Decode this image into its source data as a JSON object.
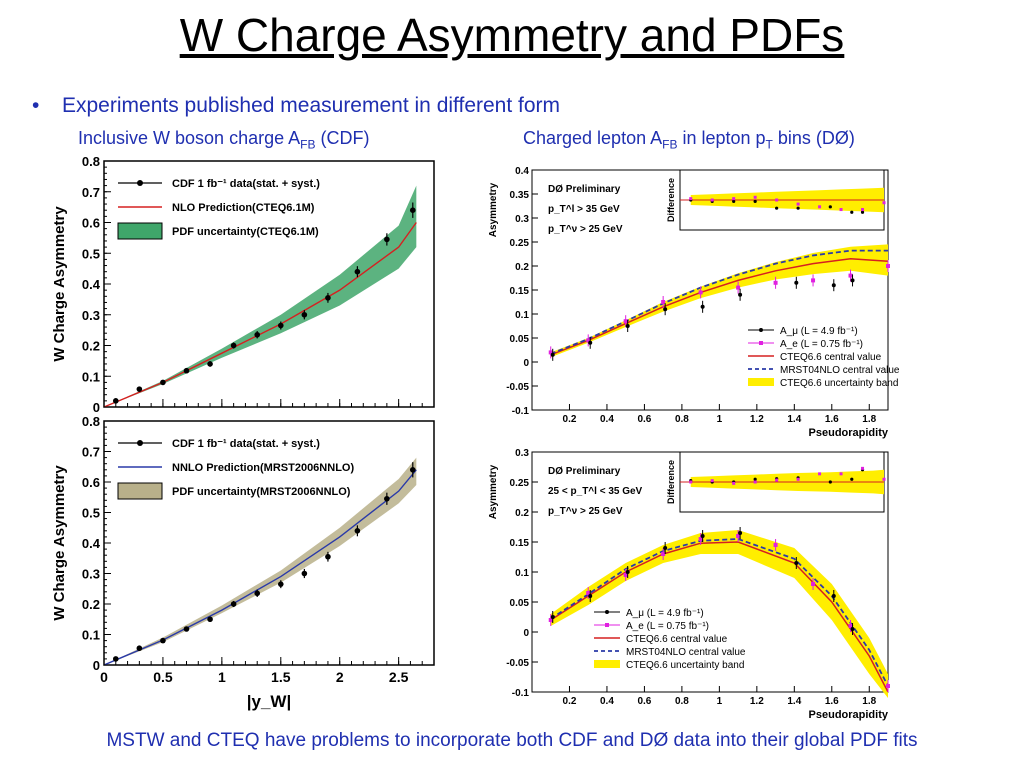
{
  "title": "W Charge Asymmetry and PDFs",
  "bullet": "Experiments published measurement in different form",
  "caption_left": {
    "pre": "Inclusive W boson charge A",
    "sub": "FB",
    "post": " (CDF)"
  },
  "caption_right": {
    "pre": "Charged lepton A",
    "sub": "FB",
    "mid": " in lepton p",
    "sub2": "T",
    "post": " bins (DØ)"
  },
  "footer": "MSTW and CTEQ have problems to incorporate both CDF and DØ data into their global PDF fits",
  "colors": {
    "text_blue": "#1f2fb0",
    "cdf_band_green": "#3fa66a",
    "cdf_band_olive": "#b8b08a",
    "d0_band_yellow": "#ffee00",
    "red_line": "#d62020",
    "blue_line": "#2a3aa8",
    "magenta": "#e020e0"
  },
  "chart_data": [
    {
      "id": "cdf-top",
      "type": "scatter",
      "xlabel": "",
      "ylabel": "W Charge Asymmetry",
      "xlim": [
        0,
        2.8
      ],
      "ylim": [
        0,
        0.8
      ],
      "xticks": [
        0,
        0.5,
        1,
        1.5,
        2,
        2.5
      ],
      "xtick_labels": [],
      "yticks": [
        0,
        0.1,
        0.2,
        0.3,
        0.4,
        0.5,
        0.6,
        0.7,
        0.8
      ],
      "legend": [
        {
          "label": "CDF 1 fb⁻¹ data(stat. + syst.)",
          "kind": "marker"
        },
        {
          "label": "NLO Prediction(CTEQ6.1M)",
          "kind": "line"
        },
        {
          "label": "PDF uncertainty(CTEQ6.1M)",
          "kind": "band"
        }
      ],
      "legend_position": "top-left",
      "data": {
        "x": [
          0.1,
          0.3,
          0.5,
          0.7,
          0.9,
          1.1,
          1.3,
          1.5,
          1.7,
          1.9,
          2.15,
          2.4,
          2.62
        ],
        "y": [
          0.02,
          0.058,
          0.08,
          0.118,
          0.14,
          0.2,
          0.235,
          0.265,
          0.3,
          0.355,
          0.44,
          0.545,
          0.64
        ],
        "err": [
          0.006,
          0.008,
          0.008,
          0.008,
          0.009,
          0.01,
          0.012,
          0.013,
          0.015,
          0.016,
          0.018,
          0.02,
          0.025
        ]
      },
      "prediction": {
        "x": [
          0,
          0.5,
          1,
          1.5,
          2,
          2.5,
          2.65
        ],
        "y": [
          0,
          0.08,
          0.175,
          0.27,
          0.38,
          0.52,
          0.6
        ]
      },
      "band": {
        "x": [
          0,
          0.5,
          1,
          1.5,
          2,
          2.5,
          2.65
        ],
        "lo": [
          0,
          0.075,
          0.16,
          0.24,
          0.33,
          0.45,
          0.52
        ],
        "hi": [
          0,
          0.085,
          0.19,
          0.3,
          0.43,
          0.59,
          0.72
        ]
      },
      "line_color": "#d62020",
      "band_color": "#3fa66a"
    },
    {
      "id": "cdf-bottom",
      "type": "scatter",
      "xlabel": "|y_W|",
      "ylabel": "W Charge Asymmetry",
      "xlim": [
        0,
        2.8
      ],
      "ylim": [
        0,
        0.8
      ],
      "xticks": [
        0,
        0.5,
        1,
        1.5,
        2,
        2.5
      ],
      "xtick_labels": [
        "0",
        "0.5",
        "1",
        "1.5",
        "2",
        "2.5"
      ],
      "yticks": [
        0,
        0.1,
        0.2,
        0.3,
        0.4,
        0.5,
        0.6,
        0.7,
        0.8
      ],
      "legend": [
        {
          "label": "CDF 1 fb⁻¹ data(stat. + syst.)",
          "kind": "marker"
        },
        {
          "label": "NNLO Prediction(MRST2006NNLO)",
          "kind": "line"
        },
        {
          "label": "PDF uncertainty(MRST2006NNLO)",
          "kind": "band"
        }
      ],
      "legend_position": "top-left",
      "data": {
        "x": [
          0.1,
          0.3,
          0.5,
          0.7,
          0.9,
          1.1,
          1.3,
          1.5,
          1.7,
          1.9,
          2.15,
          2.4,
          2.62
        ],
        "y": [
          0.02,
          0.055,
          0.08,
          0.118,
          0.15,
          0.2,
          0.235,
          0.265,
          0.3,
          0.355,
          0.44,
          0.545,
          0.64
        ],
        "err": [
          0.006,
          0.008,
          0.008,
          0.008,
          0.009,
          0.01,
          0.012,
          0.013,
          0.015,
          0.016,
          0.018,
          0.02,
          0.025
        ]
      },
      "prediction": {
        "x": [
          0,
          0.5,
          1,
          1.5,
          2,
          2.5,
          2.65
        ],
        "y": [
          0,
          0.082,
          0.18,
          0.29,
          0.42,
          0.57,
          0.64
        ]
      },
      "band": {
        "x": [
          0,
          0.5,
          1,
          1.5,
          2,
          2.5,
          2.65
        ],
        "lo": [
          0,
          0.075,
          0.17,
          0.27,
          0.39,
          0.53,
          0.59
        ],
        "hi": [
          0,
          0.09,
          0.195,
          0.31,
          0.45,
          0.61,
          0.68
        ]
      },
      "line_color": "#2a3aa8",
      "band_color": "#b8b08a"
    },
    {
      "id": "d0-top",
      "type": "line",
      "xlabel": "Pseudorapidity",
      "ylabel": "Asymmetry",
      "xlim": [
        0,
        1.9
      ],
      "ylim": [
        -0.1,
        0.4
      ],
      "xticks": [
        0.2,
        0.4,
        0.6,
        0.8,
        1,
        1.2,
        1.4,
        1.6,
        1.8
      ],
      "yticks": [
        -0.1,
        -0.05,
        0,
        0.05,
        0.1,
        0.15,
        0.2,
        0.25,
        0.3,
        0.35,
        0.4
      ],
      "annotation": [
        "DØ Preliminary",
        "p_T^l > 35 GeV",
        "p_T^ν > 25 GeV"
      ],
      "legend": [
        {
          "label": "A_μ (L = 4.9 fb⁻¹)",
          "kind": "marker"
        },
        {
          "label": "A_e (L = 0.75 fb⁻¹)",
          "kind": "marker-magenta"
        },
        {
          "label": "CTEQ6.6 central value",
          "kind": "line"
        },
        {
          "label": "MRST04NLO central value",
          "kind": "dashed"
        },
        {
          "label": "CTEQ6.6 uncertainty band",
          "kind": "band"
        }
      ],
      "legend_position": "bottom-right",
      "inset_ylabel": "Difference",
      "mu": {
        "x": [
          0.1,
          0.3,
          0.5,
          0.7,
          0.9,
          1.1,
          1.4,
          1.6,
          1.7
        ],
        "y": [
          0.015,
          0.04,
          0.075,
          0.11,
          0.115,
          0.14,
          0.165,
          0.16,
          0.17
        ]
      },
      "e": {
        "x": [
          0.1,
          0.3,
          0.5,
          0.7,
          0.9,
          1.1,
          1.3,
          1.5,
          1.7,
          1.9
        ],
        "y": [
          0.02,
          0.045,
          0.085,
          0.125,
          0.145,
          0.155,
          0.165,
          0.17,
          0.18,
          0.2
        ]
      },
      "cteq": {
        "x": [
          0.1,
          0.3,
          0.5,
          0.7,
          0.9,
          1.1,
          1.3,
          1.5,
          1.7,
          1.9
        ],
        "y": [
          0.015,
          0.045,
          0.08,
          0.115,
          0.145,
          0.17,
          0.19,
          0.205,
          0.215,
          0.21
        ]
      },
      "mrst": {
        "x": [
          0.1,
          0.3,
          0.5,
          0.7,
          0.9,
          1.1,
          1.3,
          1.5,
          1.7,
          1.9
        ],
        "y": [
          0.017,
          0.048,
          0.085,
          0.122,
          0.155,
          0.182,
          0.205,
          0.222,
          0.232,
          0.232
        ]
      },
      "band": {
        "x": [
          0.1,
          0.3,
          0.5,
          0.7,
          0.9,
          1.1,
          1.3,
          1.5,
          1.7,
          1.9
        ],
        "lo": [
          0.01,
          0.04,
          0.073,
          0.105,
          0.133,
          0.155,
          0.172,
          0.183,
          0.19,
          0.18
        ],
        "hi": [
          0.02,
          0.05,
          0.087,
          0.125,
          0.157,
          0.185,
          0.208,
          0.227,
          0.24,
          0.245
        ]
      }
    },
    {
      "id": "d0-bottom",
      "type": "line",
      "xlabel": "Pseudorapidity",
      "ylabel": "Asymmetry",
      "xlim": [
        0,
        1.9
      ],
      "ylim": [
        -0.1,
        0.3
      ],
      "xticks": [
        0.2,
        0.4,
        0.6,
        0.8,
        1,
        1.2,
        1.4,
        1.6,
        1.8
      ],
      "yticks": [
        -0.1,
        -0.05,
        0,
        0.05,
        0.1,
        0.15,
        0.2,
        0.25,
        0.3
      ],
      "annotation": [
        "DØ Preliminary",
        "25 < p_T^l < 35 GeV",
        "p_T^ν > 25 GeV"
      ],
      "legend": [
        {
          "label": "A_μ (L = 4.9 fb⁻¹)",
          "kind": "marker"
        },
        {
          "label": "A_e (L = 0.75 fb⁻¹)",
          "kind": "marker-magenta"
        },
        {
          "label": "CTEQ6.6 central value",
          "kind": "line"
        },
        {
          "label": "MRST04NLO central value",
          "kind": "dashed"
        },
        {
          "label": "CTEQ6.6 uncertainty band",
          "kind": "band"
        }
      ],
      "legend_position": "bottom-center",
      "inset_ylabel": "Difference",
      "mu": {
        "x": [
          0.1,
          0.3,
          0.5,
          0.7,
          0.9,
          1.1,
          1.4,
          1.6,
          1.7
        ],
        "y": [
          0.025,
          0.06,
          0.1,
          0.14,
          0.16,
          0.165,
          0.115,
          0.06,
          0.005
        ]
      },
      "e": {
        "x": [
          0.1,
          0.3,
          0.5,
          0.7,
          0.9,
          1.1,
          1.3,
          1.5,
          1.7,
          1.9
        ],
        "y": [
          0.02,
          0.065,
          0.095,
          0.13,
          0.155,
          0.16,
          0.145,
          0.08,
          0.01,
          -0.09
        ]
      },
      "cteq": {
        "x": [
          0.1,
          0.3,
          0.5,
          0.7,
          0.9,
          1.1,
          1.4,
          1.6,
          1.8,
          1.9
        ],
        "y": [
          0.02,
          0.06,
          0.1,
          0.13,
          0.148,
          0.15,
          0.115,
          0.05,
          -0.04,
          -0.1
        ]
      },
      "mrst": {
        "x": [
          0.1,
          0.3,
          0.5,
          0.7,
          0.9,
          1.1,
          1.4,
          1.6,
          1.8,
          1.9
        ],
        "y": [
          0.022,
          0.063,
          0.105,
          0.135,
          0.152,
          0.155,
          0.122,
          0.06,
          -0.03,
          -0.09
        ]
      },
      "band": {
        "x": [
          0.1,
          0.3,
          0.5,
          0.7,
          0.9,
          1.1,
          1.4,
          1.6,
          1.8,
          1.9
        ],
        "lo": [
          0.01,
          0.045,
          0.085,
          0.115,
          0.13,
          0.13,
          0.09,
          0.02,
          -0.07,
          -0.11
        ],
        "hi": [
          0.03,
          0.075,
          0.115,
          0.145,
          0.165,
          0.17,
          0.14,
          0.08,
          -0.01,
          -0.07
        ]
      }
    }
  ]
}
